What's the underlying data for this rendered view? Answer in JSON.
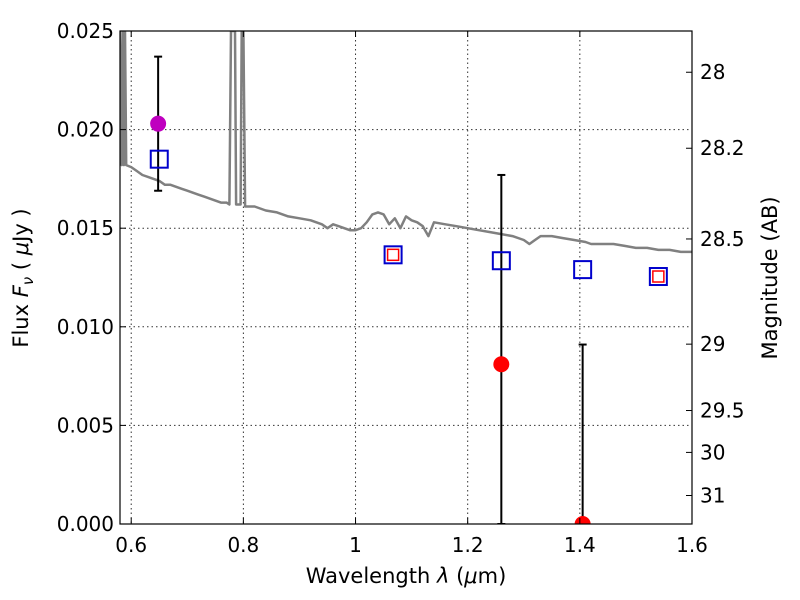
{
  "chart_data": {
    "type": "scatter",
    "xlabel": {
      "text": "Wavelength",
      "var": "λ",
      "unit_open": "(",
      "unit_mu": "μ",
      "unit_rest": "m)"
    },
    "ylabel": {
      "text": "Flux",
      "var": "F",
      "sub": "ν",
      "unit_open": "(",
      "unit_mu": "μ",
      "unit_rest": "Jy )"
    },
    "y2label": "Magnitude (AB)",
    "xlim": [
      0.58,
      1.6
    ],
    "ylim": [
      0.0,
      0.025
    ],
    "grid": true,
    "x_ticks": [
      {
        "value": 0.6,
        "label": "0.6"
      },
      {
        "value": 0.8,
        "label": "0.8"
      },
      {
        "value": 1.0,
        "label": "1"
      },
      {
        "value": 1.2,
        "label": "1.2"
      },
      {
        "value": 1.4,
        "label": "1.4"
      },
      {
        "value": 1.6,
        "label": "1.6"
      }
    ],
    "y_ticks": [
      {
        "value": 0.0,
        "label": "0.000"
      },
      {
        "value": 0.005,
        "label": "0.005"
      },
      {
        "value": 0.01,
        "label": "0.010"
      },
      {
        "value": 0.015,
        "label": "0.015"
      },
      {
        "value": 0.02,
        "label": "0.020"
      },
      {
        "value": 0.025,
        "label": "0.025"
      }
    ],
    "y2_ticks": [
      {
        "value": 28,
        "label": "28"
      },
      {
        "value": 28.2,
        "label": "28.2"
      },
      {
        "value": 28.5,
        "label": "28.5"
      },
      {
        "value": 29,
        "label": "29"
      },
      {
        "value": 29.5,
        "label": "29.5"
      },
      {
        "value": 30,
        "label": "30"
      },
      {
        "value": 31,
        "label": "31"
      }
    ],
    "model_spectrum": {
      "color": "#808080",
      "points": [
        [
          0.58,
          0.025
        ],
        [
          0.583,
          0.0182
        ],
        [
          0.585,
          0.025
        ],
        [
          0.587,
          0.0182
        ],
        [
          0.589,
          0.025
        ],
        [
          0.591,
          0.0182
        ],
        [
          0.6,
          0.0181
        ],
        [
          0.61,
          0.0179
        ],
        [
          0.62,
          0.0177
        ],
        [
          0.63,
          0.0176
        ],
        [
          0.64,
          0.0175
        ],
        [
          0.65,
          0.0174
        ],
        [
          0.66,
          0.0172
        ],
        [
          0.67,
          0.0172
        ],
        [
          0.68,
          0.0171
        ],
        [
          0.69,
          0.017
        ],
        [
          0.7,
          0.0169
        ],
        [
          0.71,
          0.0168
        ],
        [
          0.72,
          0.0167
        ],
        [
          0.73,
          0.0166
        ],
        [
          0.74,
          0.0165
        ],
        [
          0.75,
          0.0164
        ],
        [
          0.76,
          0.0163
        ],
        [
          0.77,
          0.0163
        ],
        [
          0.775,
          0.0162
        ],
        [
          0.778,
          0.025
        ],
        [
          0.785,
          0.025
        ],
        [
          0.787,
          0.0162
        ],
        [
          0.795,
          0.0162
        ],
        [
          0.797,
          0.025
        ],
        [
          0.8,
          0.025
        ],
        [
          0.803,
          0.0161
        ],
        [
          0.82,
          0.0161
        ],
        [
          0.84,
          0.0159
        ],
        [
          0.86,
          0.0158
        ],
        [
          0.88,
          0.0156
        ],
        [
          0.9,
          0.0155
        ],
        [
          0.92,
          0.0154
        ],
        [
          0.94,
          0.0152
        ],
        [
          0.95,
          0.015
        ],
        [
          0.96,
          0.0152
        ],
        [
          0.97,
          0.0151
        ],
        [
          0.98,
          0.015
        ],
        [
          0.99,
          0.0149
        ],
        [
          1.0,
          0.0149
        ],
        [
          1.01,
          0.015
        ],
        [
          1.02,
          0.0153
        ],
        [
          1.03,
          0.0157
        ],
        [
          1.04,
          0.0158
        ],
        [
          1.05,
          0.0157
        ],
        [
          1.06,
          0.0152
        ],
        [
          1.07,
          0.0155
        ],
        [
          1.08,
          0.015
        ],
        [
          1.09,
          0.0156
        ],
        [
          1.1,
          0.0154
        ],
        [
          1.11,
          0.0153
        ],
        [
          1.12,
          0.0151
        ],
        [
          1.13,
          0.0146
        ],
        [
          1.14,
          0.0153
        ],
        [
          1.16,
          0.0152
        ],
        [
          1.18,
          0.0151
        ],
        [
          1.2,
          0.015
        ],
        [
          1.22,
          0.0149
        ],
        [
          1.24,
          0.0148
        ],
        [
          1.26,
          0.0147
        ],
        [
          1.28,
          0.0146
        ],
        [
          1.3,
          0.0144
        ],
        [
          1.31,
          0.0142
        ],
        [
          1.32,
          0.0144
        ],
        [
          1.33,
          0.0146
        ],
        [
          1.35,
          0.0146
        ],
        [
          1.37,
          0.0145
        ],
        [
          1.39,
          0.0144
        ],
        [
          1.41,
          0.0143
        ],
        [
          1.42,
          0.0142
        ],
        [
          1.44,
          0.0142
        ],
        [
          1.46,
          0.0142
        ],
        [
          1.48,
          0.0141
        ],
        [
          1.5,
          0.014
        ],
        [
          1.52,
          0.014
        ],
        [
          1.54,
          0.0139
        ],
        [
          1.56,
          0.0139
        ],
        [
          1.58,
          0.0138
        ],
        [
          1.6,
          0.0138
        ]
      ]
    },
    "model_points": {
      "shape": "open-square",
      "color": "#0000cc",
      "points": [
        {
          "x": 0.65,
          "y": 0.0185
        },
        {
          "x": 1.067,
          "y": 0.01365
        },
        {
          "x": 1.26,
          "y": 0.01335
        },
        {
          "x": 1.405,
          "y": 0.0129
        },
        {
          "x": 1.54,
          "y": 0.01255
        }
      ]
    },
    "small_squares": {
      "shape": "open-square",
      "color": "#ff0000",
      "points": [
        {
          "x": 1.067,
          "y": 0.01365
        },
        {
          "x": 1.54,
          "y": 0.01255
        }
      ]
    },
    "observations": [
      {
        "x": 0.648,
        "y": 0.0203,
        "yerr_low": 0.0169,
        "yerr_high": 0.0237,
        "color": "#bf00bf"
      },
      {
        "x": 1.26,
        "y": 0.0081,
        "yerr_low": 0.0,
        "yerr_high": 0.0177,
        "color": "#ff0000"
      },
      {
        "x": 1.405,
        "y": 0.0,
        "yerr_low": 0.0,
        "yerr_high": 0.0091,
        "color": "#ff0000"
      }
    ]
  }
}
